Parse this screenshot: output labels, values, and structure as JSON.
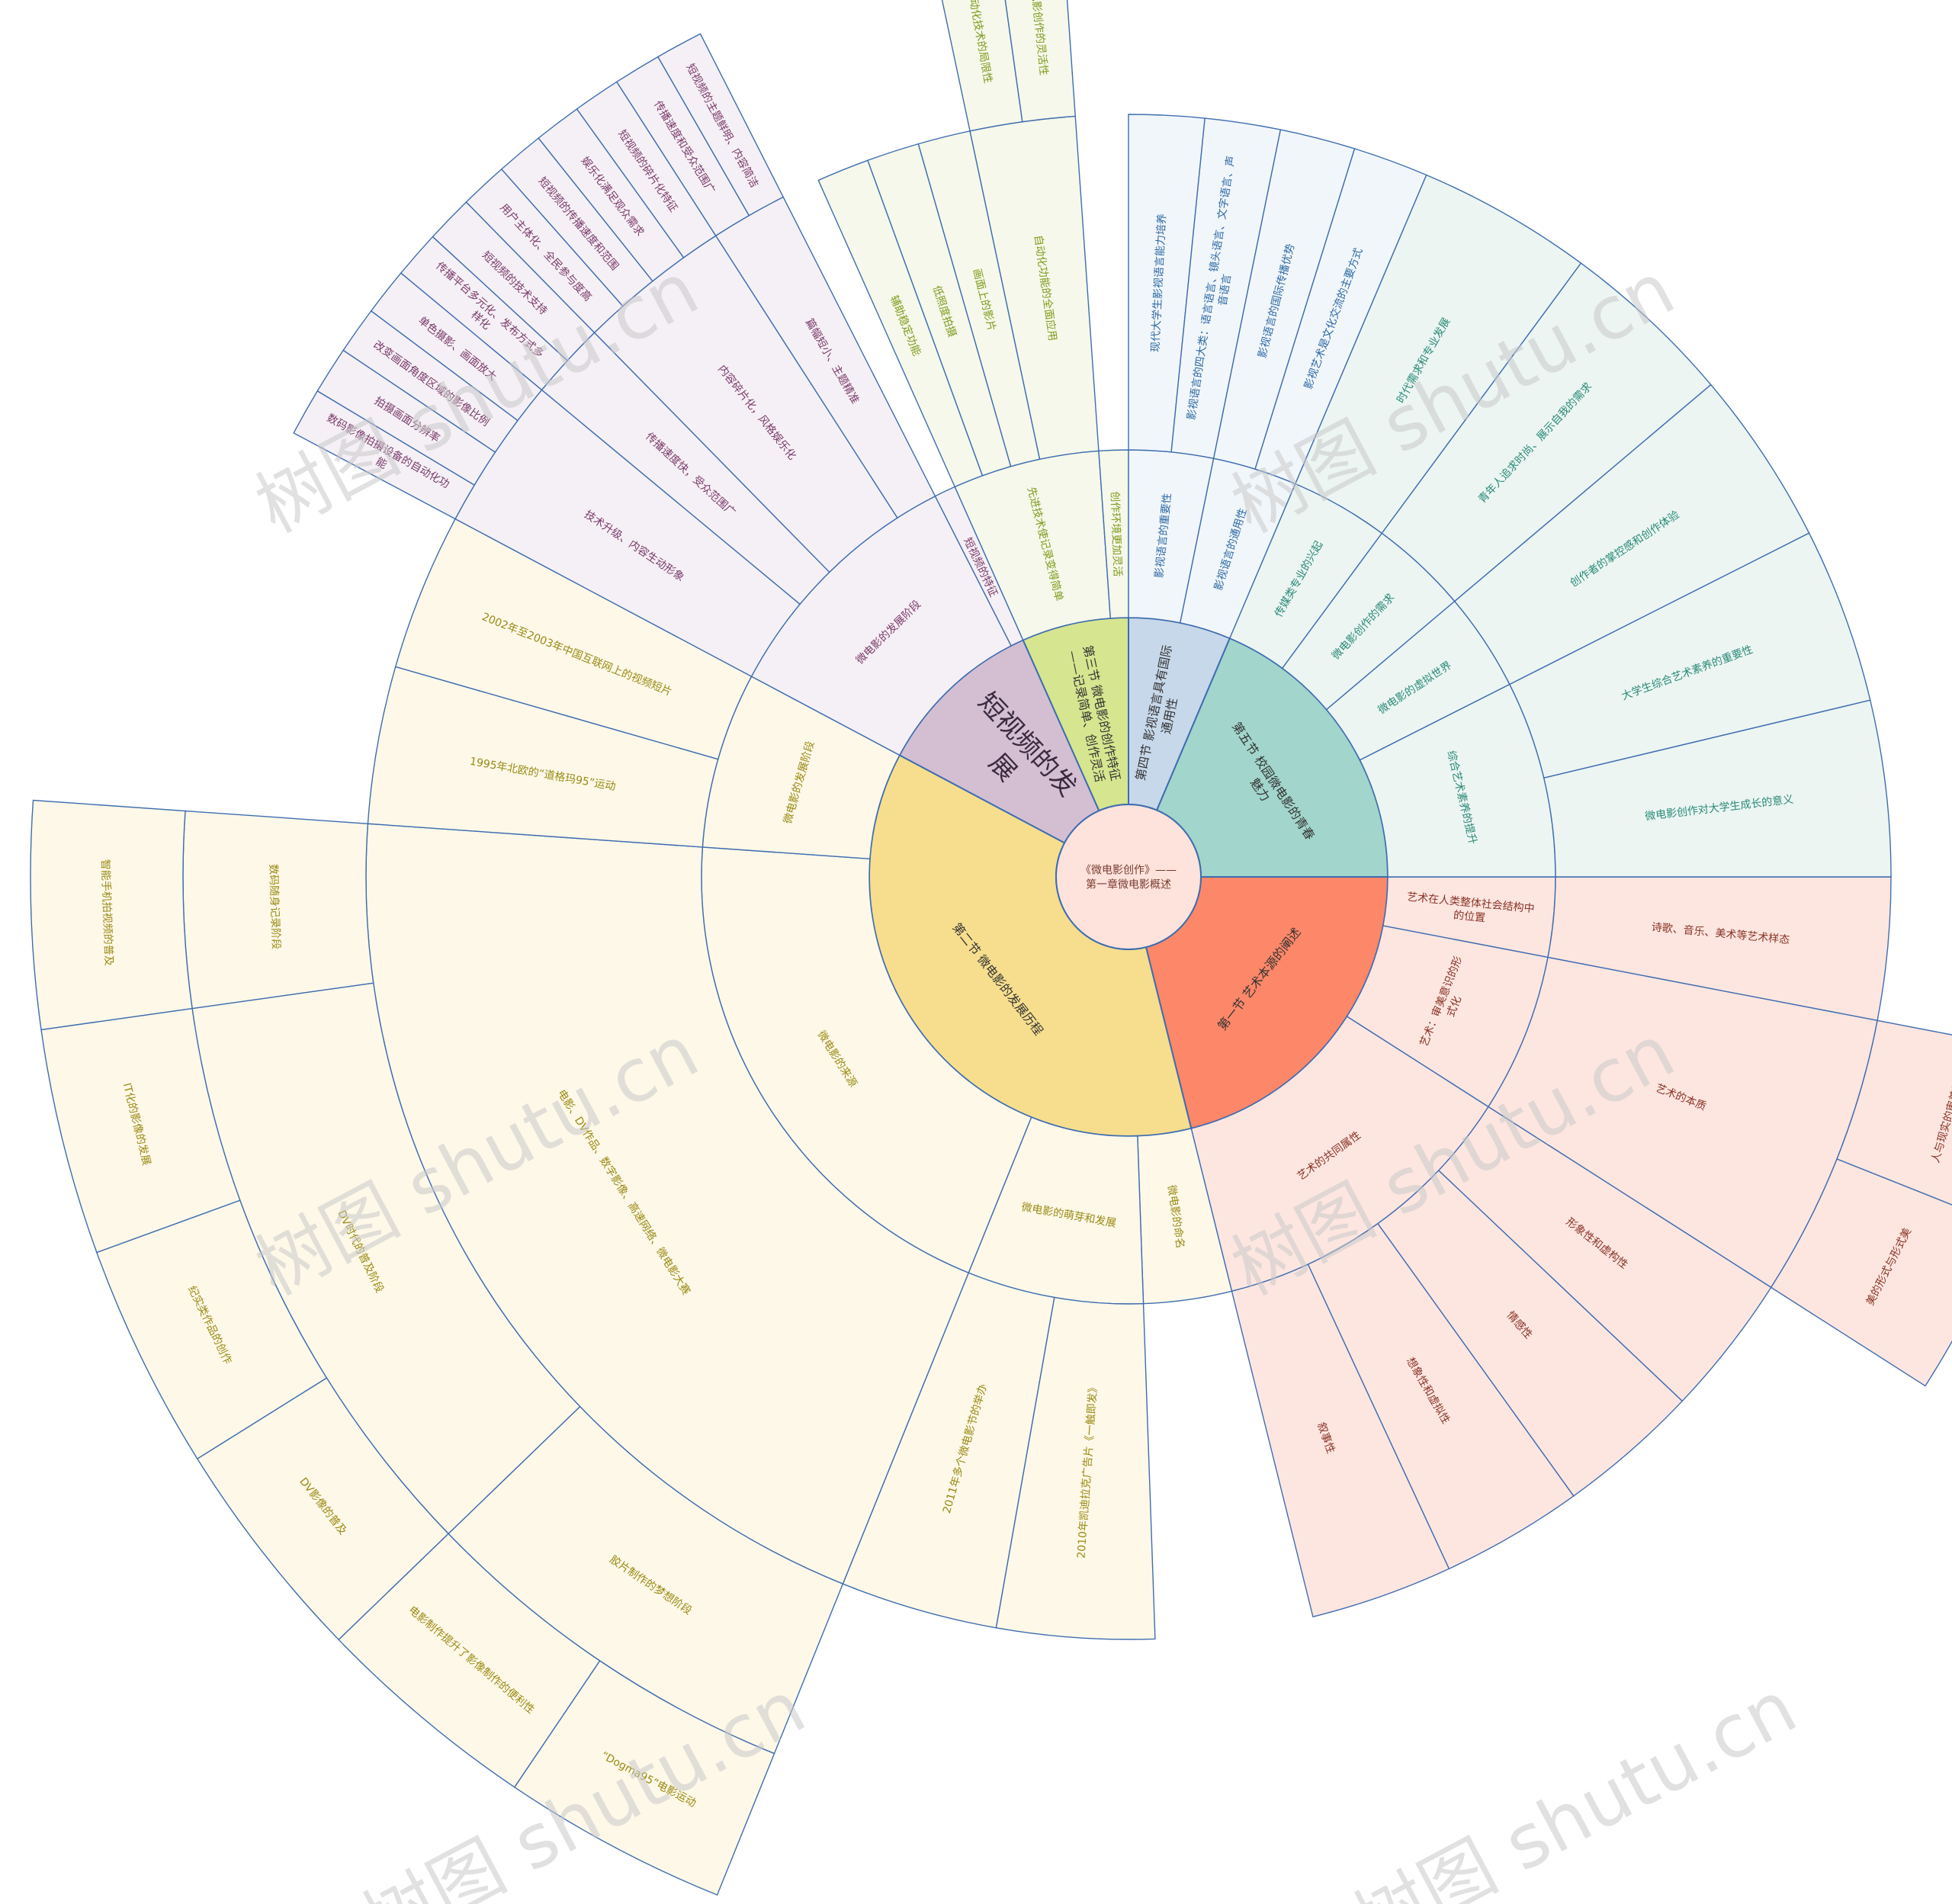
{
  "center": {
    "label": "《微电影创作》——第一章微电影概述",
    "fill": "#fde3dc",
    "text_color": "#7a3b2e"
  },
  "stroke": "#3f6db0",
  "watermark": {
    "text": "树图 shutu.cn",
    "color": "#c8c8c8"
  },
  "sections": [
    {
      "id": "s1",
      "label": "第一节 艺术本源的阐述",
      "fill": "#fd8769",
      "light": "#fde6e0",
      "text": "#8a3325",
      "children": [
        {
          "label": "艺术在人类整体社会结构中的位置",
          "children": [
            {
              "label": "诗歌、音乐、美术等艺术样态"
            }
          ]
        },
        {
          "label": "艺术：审美意识的形式化",
          "children": [
            {
              "label": "艺术的本质",
              "children": [
                {
                  "label": "人与现实的审美关系"
                },
                {
                  "label": "美的形式与形式美"
                }
              ]
            }
          ]
        },
        {
          "label": "艺术的共同属性",
          "children": [
            {
              "label": "形象性和虚构性"
            },
            {
              "label": "情感性"
            },
            {
              "label": "想象性和虚拟性"
            },
            {
              "label": "叙事性"
            }
          ]
        }
      ]
    },
    {
      "id": "s2",
      "label": "第二节 微电影的发展历程",
      "fill": "#f6de8e",
      "light": "#fdf8e8",
      "text": "#9a8a14",
      "children": [
        {
          "label": "微电影的命名",
          "children": []
        },
        {
          "label": "微电影的萌芽和发展",
          "children": [
            {
              "label": "2010年凯迪拉克广告片《一触即发》"
            },
            {
              "label": "2011年多个微电影节的举办"
            }
          ]
        },
        {
          "label": "微电影的来源",
          "children": [
            {
              "label": "电影、DV作品、数字影像、高速网络、微电影大赛",
              "children": [
                {
                  "label": "胶片制作的梦想阶段",
                  "children": [
                    {
                      "label": "“Dogma95”电影运动"
                    },
                    {
                      "label": "电影制作提升了影像制作的便利性"
                    }
                  ]
                },
                {
                  "label": "DV时代的普及阶段",
                  "children": [
                    {
                      "label": "DV影像的普及"
                    },
                    {
                      "label": "纪实类作品的创作"
                    },
                    {
                      "label": "IT化的影像的发展"
                    }
                  ]
                },
                {
                  "label": "数码随身记录阶段",
                  "children": [
                    {
                      "label": "智能手机拍视频的普及"
                    }
                  ]
                }
              ]
            }
          ]
        },
        {
          "label": "微电影的发展阶段",
          "children": [
            {
              "label": "1995年北欧的“道格玛95”运动"
            },
            {
              "label": "2002年至2003年中国互联网上的视频短片"
            }
          ]
        }
      ]
    },
    {
      "id": "s6",
      "label": "短视频的发展",
      "fill": "#d4bfd2",
      "light": "#f5f0f5",
      "text": "#7a3a6a",
      "big": true,
      "children": [
        {
          "label": "微电影的发展阶段",
          "children": [
            {
              "label": "技术升级、内容生动形象",
              "children": [
                {
                  "label": "数码影像拍摄设备的自动化功能"
                },
                {
                  "label": "拍摄画面分辨率"
                },
                {
                  "label": "改变画面角度区域的影像比例"
                },
                {
                  "label": "单色摄影、画面放大"
                }
              ]
            },
            {
              "label": "传播速度快，受众范围广",
              "children": [
                {
                  "label": "传播平台多元化、发布方式多样化"
                },
                {
                  "label": "短视频的技术支持"
                }
              ]
            },
            {
              "label": "内容碎片化，风格娱乐化",
              "children": [
                {
                  "label": "用户主体化、全民参与度高"
                },
                {
                  "label": "短视频的传播速度和范围"
                },
                {
                  "label": "娱乐化满足观众需求"
                },
                {
                  "label": "短视频的碎片化特征"
                }
              ]
            },
            {
              "label": "篇幅短小、主题精准",
              "children": [
                {
                  "label": "传播速度和受众范围广"
                },
                {
                  "label": "短视频的主题鲜明、内容简洁"
                }
              ]
            }
          ]
        },
        {
          "label": "短视频的特征",
          "children": []
        }
      ]
    },
    {
      "id": "s3",
      "label": "第三节 微电影的创作特征——记录简单、创作灵活",
      "fill": "#d6e58f",
      "light": "#f5f8ea",
      "text": "#7f9a1c",
      "children": [
        {
          "label": "先进技术使记录变得简单",
          "children": [
            {
              "label": "辅助稳定功能"
            },
            {
              "label": "低照度拍摄"
            },
            {
              "label": "画面上的影片"
            },
            {
              "label": "自动化功能的全面应用",
              "children": [
                {
                  "label": "自动化技术的局限性"
                },
                {
                  "label": "微电影创作的灵活性"
                }
              ]
            }
          ]
        },
        {
          "label": "创作环境更加灵活",
          "children": []
        }
      ]
    },
    {
      "id": "s4",
      "label": "第四节 影视语言具有国际通用性",
      "fill": "#c7d8ea",
      "light": "#f1f6fa",
      "text": "#2f6aa6",
      "children": [
        {
          "label": "影视语言的重要性",
          "children": [
            {
              "label": "现代大学生影视语言能力培养"
            },
            {
              "label": "影视语言的四大类：语言语言、镜头语言、文字语言、声音语言"
            }
          ]
        },
        {
          "label": "影视语言的通用性",
          "children": [
            {
              "label": "影视语言的国际传播优势"
            },
            {
              "label": "影视艺术是文化交流的主要方式"
            }
          ]
        }
      ]
    },
    {
      "id": "s5",
      "label": "第五节 校园微电影的青春魅力",
      "fill": "#a2d5cb",
      "light": "#ecf5f2",
      "text": "#2a8a78",
      "children": [
        {
          "label": "传媒类专业的兴起",
          "children": [
            {
              "label": "时代需求和专业发展"
            }
          ]
        },
        {
          "label": "微电影创作的需求",
          "children": [
            {
              "label": "青年人追求时尚、展示自我的需求"
            }
          ]
        },
        {
          "label": "微电影的虚拟世界",
          "children": [
            {
              "label": "创作者的掌控感和创作体验"
            }
          ]
        },
        {
          "label": "综合艺术素养的提升",
          "children": [
            {
              "label": "大学生综合艺术素养的重要性"
            },
            {
              "label": "微电影创作对大学生成长的意义"
            }
          ]
        }
      ]
    }
  ]
}
